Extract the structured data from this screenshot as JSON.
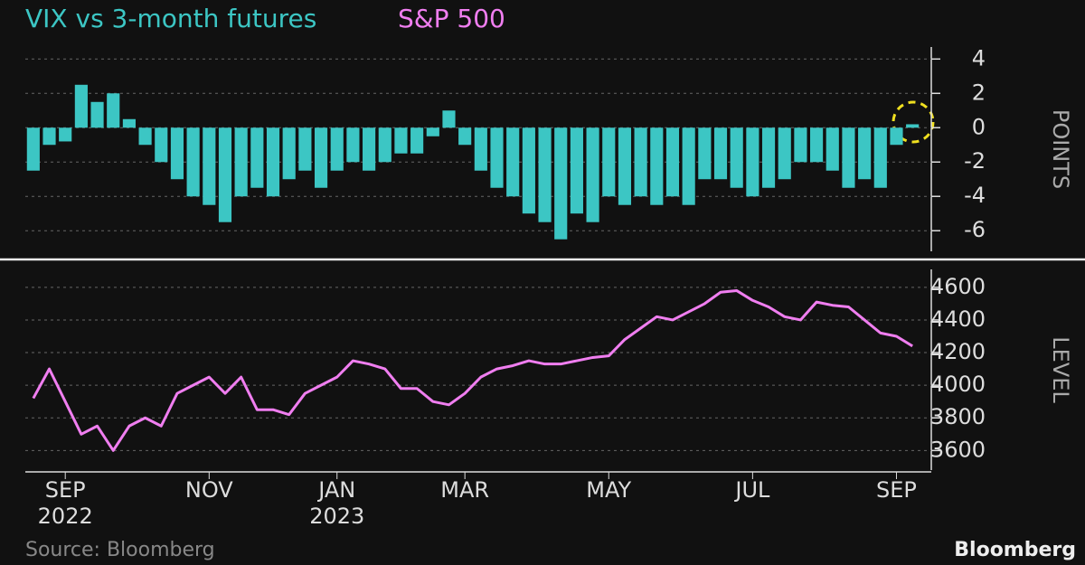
{
  "chart_data": [
    {
      "type": "bar",
      "title": "VIX vs 3-month futures",
      "color": "#3cc6c4",
      "axis_label": "POINTS",
      "values": [
        -2.5,
        -1,
        -0.8,
        2.5,
        1.5,
        2,
        0.5,
        -1,
        -2,
        -3,
        -4,
        -4.5,
        -5.5,
        -4,
        -3.5,
        -4,
        -3,
        -2.5,
        -3.5,
        -2.5,
        -2,
        -2.5,
        -2,
        -1.5,
        -1.5,
        -0.5,
        1,
        -1,
        -2.5,
        -3.5,
        -4,
        -5,
        -5.5,
        -6.5,
        -5,
        -5.5,
        -4,
        -4.5,
        -4,
        -4.5,
        -4,
        -4.5,
        -3,
        -3,
        -3.5,
        -4,
        -3.5,
        -3,
        -2,
        -2,
        -2.5,
        -3.5,
        -3,
        -3.5,
        -1,
        0.2
      ],
      "ylim": [
        -7.2,
        4.7
      ],
      "yticks": [
        4,
        2,
        0,
        -2,
        -4,
        -6
      ],
      "grid": true
    },
    {
      "type": "line",
      "title": "S&P 500",
      "color": "#f07ef0",
      "axis_label": "LEVEL",
      "categories": [
        null,
        null,
        "SEP",
        null,
        null,
        null,
        null,
        null,
        null,
        null,
        null,
        "NOV",
        null,
        null,
        null,
        null,
        null,
        null,
        null,
        "JAN",
        null,
        null,
        null,
        null,
        null,
        null,
        null,
        "MAR",
        null,
        null,
        null,
        null,
        null,
        null,
        null,
        null,
        "MAY",
        null,
        null,
        null,
        null,
        null,
        null,
        null,
        null,
        "JUL",
        null,
        null,
        null,
        null,
        null,
        null,
        null,
        null,
        "SEP",
        null
      ],
      "category_sublabels": [
        null,
        null,
        "2022",
        null,
        null,
        null,
        null,
        null,
        null,
        null,
        null,
        null,
        null,
        null,
        null,
        null,
        null,
        null,
        null,
        "2023",
        null,
        null,
        null,
        null,
        null,
        null,
        null,
        null,
        null,
        null,
        null,
        null,
        null,
        null,
        null,
        null,
        null,
        null,
        null,
        null,
        null,
        null,
        null,
        null,
        null,
        null,
        null,
        null,
        null,
        null,
        null,
        null,
        null,
        null,
        null,
        null
      ],
      "values": [
        3920,
        4100,
        3900,
        3700,
        3750,
        3600,
        3750,
        3800,
        3750,
        3950,
        4000,
        4050,
        3950,
        4050,
        3850,
        3850,
        3820,
        3950,
        4000,
        4050,
        4150,
        4130,
        4100,
        3980,
        3980,
        3900,
        3880,
        3950,
        4050,
        4100,
        4120,
        4150,
        4130,
        4130,
        4150,
        4170,
        4180,
        4280,
        4350,
        4420,
        4400,
        4450,
        4500,
        4570,
        4580,
        4520,
        4480,
        4420,
        4400,
        4510,
        4490,
        4480,
        4400,
        4320,
        4300,
        4240
      ],
      "ylim": [
        3480,
        4710
      ],
      "yticks": [
        4600,
        4400,
        4200,
        4000,
        3800,
        3600
      ],
      "grid": true
    }
  ],
  "source": "Source: Bloomberg",
  "brand": "Bloomberg"
}
